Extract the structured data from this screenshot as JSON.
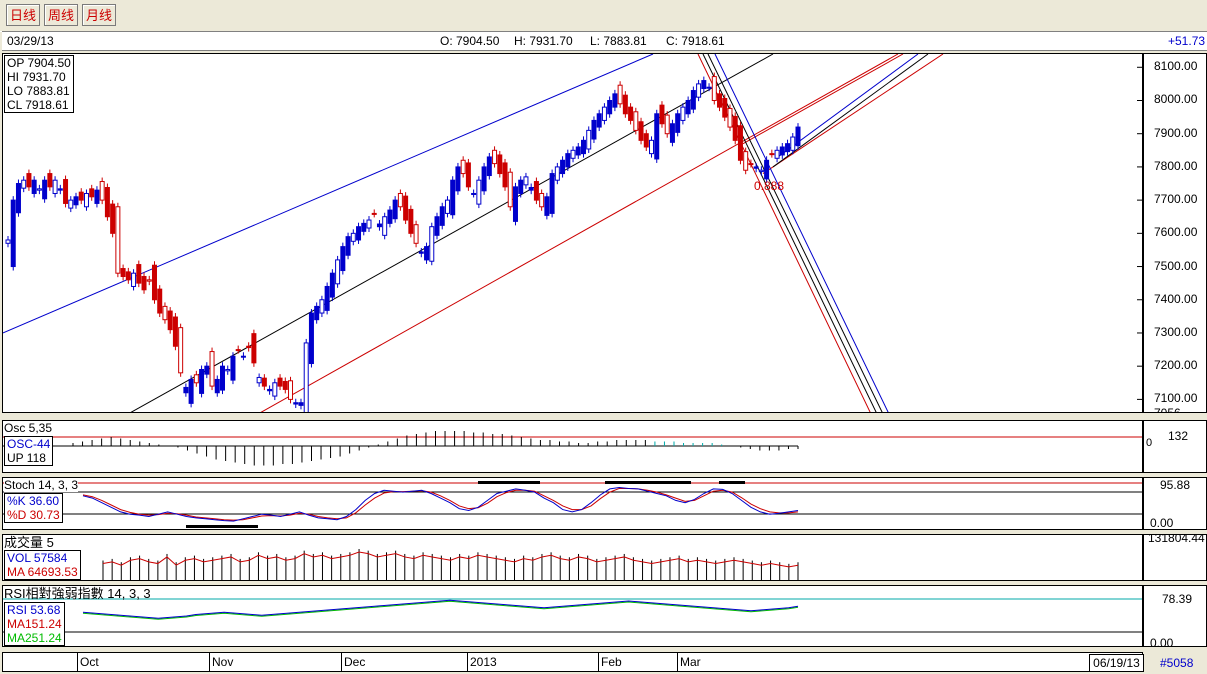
{
  "tabs": [
    {
      "label": "日线"
    },
    {
      "label": "周线"
    },
    {
      "label": "月线"
    }
  ],
  "info": {
    "date": "03/29/13",
    "open": "O: 7904.50",
    "high": "H: 7931.70",
    "low": "L: 7883.81",
    "close": "C: 7918.61",
    "change": "+51.73"
  },
  "ohlc_box": {
    "op": "OP 7904.50",
    "hi": "HI  7931.70",
    "lo": "LO  7883.81",
    "cl": "CL  7918.61"
  },
  "fib_label": "0.888",
  "colors": {
    "up": "#0000cc",
    "down": "#cc0000",
    "doji": "#000000",
    "channel_blue": "#0000cc",
    "channel_red": "#cc0000"
  },
  "osc": {
    "title": "Osc 5,35",
    "osc": "OSC-44",
    "up": "UP   118",
    "scale": "132",
    "zero": "0"
  },
  "stoch": {
    "title": "Stoch 14, 3, 3",
    "k": "%K   36.60",
    "d": "%D   30.73",
    "scale_top": "95.88",
    "scale_bottom": "0.00"
  },
  "vol": {
    "title": "成交量 5",
    "vol": "VOL 57584",
    "ma": "MA   64693.53",
    "scale_top": "131804.44"
  },
  "rsi": {
    "title": "RSI相對強弱指數 14, 3, 3",
    "rsi": "RSI  53.68",
    "ma1": "MA151.24",
    "ma2": "MA251.24",
    "scale_top": "78.39",
    "scale_bottom": "0.00"
  },
  "xaxis": {
    "months": [
      "Oct",
      "Nov",
      "Dec",
      "2013",
      "Feb",
      "Mar"
    ],
    "end_date": "06/19/13",
    "record": "#5058"
  },
  "chart_data": {
    "type": "candlestick",
    "y_ticks": [
      8100,
      8000,
      7900,
      7800,
      7700,
      7600,
      7500,
      7400,
      7300,
      7200,
      7100
    ],
    "y_tick_labels": [
      "8100.00",
      "8000.00",
      "7900.00",
      "7800.00",
      "7700.00",
      "7600.00",
      "7500.00",
      "7400.00",
      "7300.00",
      "7200.00",
      "7100.00",
      "7056"
    ],
    "ylim": [
      7056,
      8140
    ],
    "closes": [
      7580,
      7700,
      7750,
      7760,
      7740,
      7760,
      7730,
      7760,
      7740,
      7760,
      7730,
      7690,
      7700,
      7710,
      7700,
      7720,
      7710,
      7730,
      7700,
      7650,
      7600,
      7480,
      7470,
      7460,
      7480,
      7450,
      7430,
      7460,
      7400,
      7360,
      7340,
      7310,
      7260,
      7180,
      7120,
      7160,
      7150,
      7190,
      7200,
      7140,
      7160,
      7200,
      7190,
      7230,
      7250,
      7230,
      7260,
      7210,
      7150,
      7140,
      7130,
      7150,
      7140,
      7130,
      7100,
      7090,
      7090,
      7270,
      7360,
      7380,
      7400,
      7440,
      7480,
      7520,
      7560,
      7590,
      7600,
      7620,
      7630,
      7640,
      7660,
      7620,
      7650,
      7670,
      7700,
      7680,
      7640,
      7600,
      7570,
      7540,
      7560,
      7620,
      7650,
      7680,
      7700,
      7760,
      7800,
      7780,
      7740,
      7720,
      7760,
      7800,
      7830,
      7810,
      7780,
      7740,
      7680,
      7740,
      7760,
      7770,
      7730,
      7700,
      7680,
      7710,
      7780,
      7800,
      7820,
      7840,
      7850,
      7860,
      7880,
      7910,
      7940,
      7960,
      7980,
      8000,
      8020,
      7990,
      7960,
      7940,
      7910,
      7880,
      7860,
      7880,
      7960,
      7930,
      7900,
      7930,
      7960,
      7980,
      8000,
      8030,
      8050,
      8060,
      8040,
      8000,
      7980,
      7950,
      7920,
      7880,
      7820,
      7790,
      7810,
      7800,
      7790,
      7820,
      7840,
      7850,
      7860,
      7870,
      7890,
      7920
    ],
    "dirs": "bbbbrbbbrbbrbbrbrbrrrrrrbrrrrrrrrrbbrbbrbbbbrbrrbrbbrrrbbbbbbbbbbbbbbbrbbbbrrrrbbbbbbbbrrbbbbrrrrbbbbrrbbbbbbbbbbbbbbrrrrrrbbrrbbbbbbbbrrrrrrrrbbbrbbbbbbb",
    "channels": [
      {
        "color": "blue",
        "note": "upper channel"
      },
      {
        "color": "black",
        "note": "middle channel"
      },
      {
        "color": "red",
        "note": "lower channel"
      }
    ],
    "osc_values": [
      2,
      3,
      4,
      5,
      6,
      5,
      4,
      3,
      2,
      1,
      0,
      -1,
      -3,
      -5,
      -7,
      -9,
      -10,
      -11,
      -12,
      -13,
      -13,
      -13,
      -12,
      -12,
      -11,
      -10,
      -9,
      -8,
      -7,
      -5,
      -3,
      -1,
      1,
      3,
      5,
      7,
      8,
      9,
      10,
      10,
      10,
      10,
      9,
      9,
      8,
      8,
      7,
      6,
      5,
      4,
      4,
      3,
      3,
      2,
      2,
      3,
      3,
      4,
      4,
      4,
      4,
      3,
      3,
      3,
      2,
      2,
      2,
      2,
      1,
      0,
      -1,
      -2,
      -3,
      -3,
      -3,
      -2,
      -2
    ],
    "stoch_k": [
      70,
      65,
      55,
      45,
      35,
      30,
      28,
      25,
      30,
      35,
      30,
      25,
      22,
      20,
      18,
      16,
      15,
      20,
      25,
      30,
      28,
      25,
      30,
      35,
      28,
      22,
      20,
      18,
      25,
      40,
      60,
      75,
      82,
      80,
      78,
      80,
      82,
      75,
      65,
      55,
      42,
      38,
      45,
      60,
      75,
      80,
      85,
      82,
      78,
      65,
      55,
      40,
      35,
      40,
      55,
      72,
      85,
      88,
      86,
      85,
      80,
      75,
      70,
      60,
      55,
      62,
      75,
      85,
      84,
      75,
      60,
      45,
      35,
      30,
      32,
      35,
      38
    ],
    "stoch_d": [
      72,
      68,
      60,
      50,
      40,
      34,
      30,
      28,
      29,
      32,
      31,
      28,
      24,
      22,
      20,
      18,
      17,
      18,
      22,
      26,
      27,
      26,
      28,
      32,
      30,
      25,
      22,
      20,
      22,
      33,
      50,
      65,
      76,
      79,
      79,
      80,
      81,
      78,
      70,
      60,
      48,
      42,
      44,
      54,
      68,
      77,
      82,
      82,
      80,
      70,
      60,
      48,
      40,
      40,
      48,
      64,
      78,
      86,
      86,
      85,
      82,
      78,
      72,
      65,
      58,
      60,
      70,
      80,
      82,
      78,
      66,
      52,
      42,
      35,
      33,
      33,
      35
    ],
    "vol_values": [
      65,
      70,
      60,
      75,
      80,
      70,
      65,
      85,
      60,
      75,
      80,
      70,
      75,
      80,
      85,
      70,
      75,
      90,
      80,
      85,
      75,
      80,
      95,
      85,
      90,
      80,
      85,
      90,
      100,
      95,
      85,
      90,
      95,
      85,
      80,
      90,
      85,
      80,
      75,
      85,
      80,
      90,
      85,
      80,
      75,
      70,
      80,
      75,
      85,
      90,
      80,
      75,
      85,
      80,
      70,
      75,
      80,
      85,
      75,
      70,
      65,
      70,
      75,
      80,
      70,
      75,
      70,
      65,
      70,
      75,
      70,
      65,
      60,
      65,
      60,
      55,
      60
    ],
    "rsi_values": [
      45,
      44,
      43,
      42,
      41,
      40,
      39,
      38,
      37,
      38,
      39,
      40,
      42,
      43,
      44,
      45,
      44,
      43,
      42,
      41,
      42,
      43,
      44,
      45,
      46,
      47,
      48,
      49,
      50,
      51,
      52,
      53,
      54,
      55,
      56,
      57,
      58,
      59,
      60,
      61,
      60,
      59,
      58,
      57,
      56,
      55,
      54,
      53,
      52,
      51,
      52,
      53,
      54,
      55,
      56,
      57,
      58,
      59,
      60,
      59,
      58,
      57,
      56,
      55,
      54,
      53,
      52,
      51,
      50,
      49,
      48,
      47,
      48,
      49,
      50,
      51,
      53
    ]
  }
}
